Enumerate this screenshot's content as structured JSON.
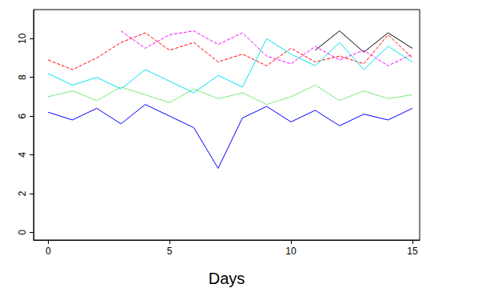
{
  "chart_data": {
    "type": "line",
    "x_label": "Days",
    "x": [
      0,
      1,
      2,
      3,
      4,
      5,
      6,
      7,
      8,
      9,
      10,
      11,
      12,
      13,
      14,
      15
    ],
    "xlim": [
      -0.6,
      15.3
    ],
    "xticks": [
      0,
      5,
      10,
      15
    ],
    "ylim": [
      -0.4,
      11.5
    ],
    "yticks": [
      0,
      2,
      4,
      6,
      8,
      10
    ],
    "grid": false,
    "series": [
      {
        "color": "#000000",
        "line_style": "solid",
        "values": [
          null,
          null,
          null,
          null,
          null,
          null,
          null,
          null,
          null,
          null,
          null,
          9.4,
          10.4,
          9.3,
          10.3,
          9.5
        ]
      },
      {
        "color": "#ff00ff",
        "line_style": "dashed",
        "values": [
          null,
          null,
          null,
          10.4,
          9.5,
          10.2,
          10.4,
          9.7,
          10.3,
          9.1,
          8.7,
          9.6,
          8.9,
          9.4,
          8.6,
          9.2
        ]
      },
      {
        "color": "#ff0000",
        "line_style": "dashed",
        "values": [
          8.9,
          8.4,
          9.0,
          9.8,
          10.3,
          9.4,
          9.8,
          8.8,
          9.2,
          8.6,
          9.5,
          8.8,
          9.1,
          8.7,
          10.2,
          9.0
        ]
      },
      {
        "color": "#00e5ee",
        "line_style": "solid",
        "values": [
          8.2,
          7.6,
          8.0,
          7.4,
          8.4,
          7.8,
          7.2,
          8.1,
          7.5,
          10.0,
          9.2,
          8.6,
          9.8,
          8.4,
          9.6,
          8.8
        ]
      },
      {
        "color": "#0000ff",
        "line_style": "solid",
        "values": [
          6.2,
          5.8,
          6.4,
          5.6,
          6.6,
          6.0,
          5.4,
          3.3,
          5.9,
          6.5,
          5.7,
          6.3,
          5.5,
          6.1,
          5.8,
          6.4
        ]
      },
      {
        "color": "#00cd00",
        "line_style": "dotted",
        "values": [
          7.0,
          7.3,
          6.8,
          7.5,
          7.1,
          6.7,
          7.4,
          6.9,
          7.2,
          6.6,
          7.0,
          7.6,
          6.8,
          7.3,
          6.9,
          7.1
        ]
      }
    ]
  }
}
